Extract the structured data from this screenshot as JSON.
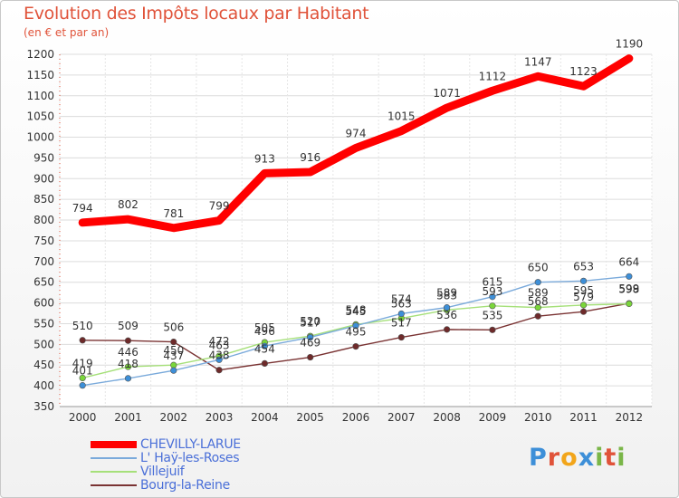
{
  "header": {
    "title": "Evolution des Impôts locaux par Habitant",
    "subtitle": "(en € et par an)"
  },
  "logo": {
    "text": "Proxiti",
    "letters": [
      "P",
      "r",
      "o",
      "x",
      "i",
      "t",
      "i"
    ],
    "colors": [
      "#3d8fd8",
      "#e0533a",
      "#f2a51a",
      "#3d8fd8",
      "#7ab648",
      "#e0533a",
      "#7ab648"
    ]
  },
  "chart_data": {
    "type": "line",
    "title": "Evolution des Impôts locaux par Habitant",
    "subtitle": "(en € et par an)",
    "xlabel": "",
    "ylabel": "",
    "ylim": [
      350,
      1200
    ],
    "yticks": [
      350,
      400,
      450,
      500,
      550,
      600,
      650,
      700,
      750,
      800,
      850,
      900,
      950,
      1000,
      1050,
      1100,
      1150,
      1200
    ],
    "grid": true,
    "legend_position": "bottom-left",
    "categories": [
      "2000",
      "2001",
      "2002",
      "2003",
      "2004",
      "2005",
      "2006",
      "2007",
      "2008",
      "2009",
      "2010",
      "2011",
      "2012"
    ],
    "series": [
      {
        "name": "CHEVILLY-LARUE",
        "color": "#ff0000",
        "width": "thick",
        "marker": "none",
        "values": [
          794,
          802,
          781,
          799,
          913,
          916,
          974,
          1015,
          1071,
          1112,
          1147,
          1123,
          1190
        ]
      },
      {
        "name": "L' Haÿ-les-Roses",
        "color": "#7aaadb",
        "width": "thin",
        "marker": "#3d8fd8",
        "values": [
          401,
          418,
          437,
          463,
          496,
          517,
          545,
          574,
          589,
          615,
          650,
          653,
          664
        ]
      },
      {
        "name": "Villejuif",
        "color": "#a6e07a",
        "width": "thin",
        "marker": "#7ad63a",
        "values": [
          419,
          446,
          450,
          472,
          505,
          520,
          548,
          563,
          583,
          593,
          589,
          595,
          598
        ]
      },
      {
        "name": "Bourg-la-Reine",
        "color": "#7a3333",
        "width": "thin",
        "marker": "#6e2a2a",
        "values": [
          510,
          509,
          506,
          438,
          454,
          469,
          495,
          517,
          536,
          535,
          568,
          579,
          599
        ]
      }
    ]
  }
}
